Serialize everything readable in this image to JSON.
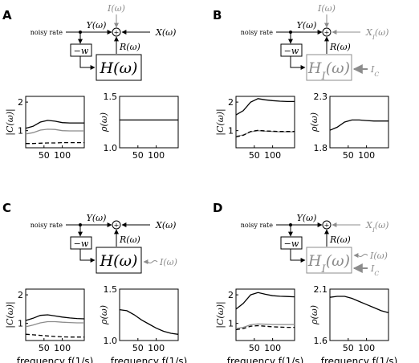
{
  "colors": {
    "black": "#000000",
    "gray": "#8c8c8c"
  },
  "panels": [
    {
      "letter": "A",
      "noisy": "noisy rate",
      "Y": "Y(ω)",
      "I": "I(ω)",
      "R": "R(ω)",
      "X": "X(ω)",
      "w": "−w",
      "H": "H(ω)",
      "side_input": "",
      "I_gray": true,
      "X_gray": false,
      "H_gray": false,
      "C_ylabel": "|C(ω)|",
      "rho_ylabel": "ρ(ω)",
      "C_yticks": [
        "1",
        "2"
      ],
      "C_xticks": [
        "50",
        "100"
      ],
      "rho_yticks": [
        "1.0",
        "1.5"
      ],
      "rho_xticks": [
        "50",
        "100"
      ],
      "xlabel": ""
    },
    {
      "letter": "B",
      "noisy": "noisy rate",
      "Y": "Y(ω)",
      "I": "I(ω)",
      "R": "R(ω)",
      "X": "X_I(ω)",
      "w": "−w",
      "H": "H_I(ω)",
      "side_input": "I_C",
      "I_gray": true,
      "X_gray": true,
      "H_gray": true,
      "C_ylabel": "|C(ω)|",
      "rho_ylabel": "ρ(ω)",
      "C_yticks": [
        "1",
        "2"
      ],
      "C_xticks": [
        "50",
        "100"
      ],
      "rho_yticks": [
        "1.8",
        "2.3"
      ],
      "rho_xticks": [
        "50",
        "100"
      ],
      "xlabel": ""
    },
    {
      "letter": "C",
      "noisy": "noisy rate",
      "Y": "Y(ω)",
      "I": "",
      "R": "R(ω)",
      "X": "X(ω)",
      "w": "−w",
      "H": "H(ω)",
      "side_input": "I(ω)",
      "I_gray": true,
      "X_gray": false,
      "H_gray": false,
      "C_ylabel": "|C(ω)|",
      "rho_ylabel": "ρ(ω)",
      "C_yticks": [
        "1",
        "2"
      ],
      "C_xticks": [
        "50",
        "100"
      ],
      "rho_yticks": [
        "1.0",
        "1.5"
      ],
      "rho_xticks": [
        "50",
        "100"
      ],
      "xlabel": "frequency f(1/s)"
    },
    {
      "letter": "D",
      "noisy": "noisy rate",
      "Y": "Y(ω)",
      "I": "",
      "R": "R(ω)",
      "X": "X_I(ω)",
      "w": "−w",
      "H": "H_I(ω)",
      "side_input": "I(ω)",
      "side_input2": "I_C",
      "I_gray": true,
      "X_gray": true,
      "H_gray": true,
      "C_ylabel": "|C(ω)|",
      "rho_ylabel": "ρ(ω)",
      "C_yticks": [
        "1",
        "2"
      ],
      "C_xticks": [
        "50",
        "100"
      ],
      "rho_yticks": [
        "1.6",
        "2.1"
      ],
      "rho_xticks": [
        "50",
        "100"
      ],
      "xlabel": "frequency f(1/s)"
    }
  ],
  "chart_data": [
    {
      "panel": "A",
      "type": "line",
      "ylabel": "|C(ω)|",
      "xlim": [
        0,
        160
      ],
      "ylim": [
        0.4,
        2.2
      ],
      "series": [
        {
          "style": "black-solid",
          "x": [
            0,
            20,
            40,
            60,
            80,
            100,
            120,
            140,
            160
          ],
          "values": [
            1.08,
            1.15,
            1.3,
            1.36,
            1.33,
            1.28,
            1.27,
            1.27,
            1.27
          ]
        },
        {
          "style": "gray-solid",
          "x": [
            0,
            20,
            40,
            60,
            80,
            100,
            120,
            140,
            160
          ],
          "values": [
            0.88,
            0.93,
            1.02,
            1.05,
            1.04,
            1.0,
            0.99,
            0.99,
            0.99
          ]
        },
        {
          "style": "black-dashed",
          "x": [
            0,
            20,
            40,
            60,
            80,
            100,
            120,
            140,
            160
          ],
          "values": [
            0.55,
            0.55,
            0.56,
            0.57,
            0.57,
            0.58,
            0.58,
            0.58,
            0.58
          ]
        }
      ]
    },
    {
      "panel": "A",
      "type": "line",
      "ylabel": "ρ(ω)",
      "xlim": [
        0,
        160
      ],
      "ylim": [
        1.0,
        1.5
      ],
      "series": [
        {
          "style": "black-solid",
          "x": [
            0,
            160
          ],
          "values": [
            1.27,
            1.27
          ]
        }
      ]
    },
    {
      "panel": "B",
      "type": "line",
      "ylabel": "|C(ω)|",
      "xlim": [
        0,
        160
      ],
      "ylim": [
        0.4,
        2.2
      ],
      "series": [
        {
          "style": "black-solid",
          "x": [
            0,
            20,
            40,
            60,
            80,
            100,
            120,
            140,
            160
          ],
          "values": [
            1.55,
            1.7,
            2.0,
            2.12,
            2.08,
            2.05,
            2.03,
            2.02,
            2.02
          ]
        },
        {
          "style": "gray-solid",
          "x": [
            0,
            20,
            40,
            60,
            80,
            100,
            120,
            140,
            160
          ],
          "values": [
            0.8,
            0.85,
            0.96,
            1.0,
            0.98,
            0.97,
            0.96,
            0.96,
            0.96
          ]
        },
        {
          "style": "black-dashed",
          "x": [
            0,
            20,
            40,
            60,
            80,
            100,
            120,
            140,
            160
          ],
          "values": [
            0.78,
            0.84,
            0.97,
            1.01,
            0.99,
            0.98,
            0.97,
            0.97,
            0.97
          ]
        }
      ]
    },
    {
      "panel": "B",
      "type": "line",
      "ylabel": "ρ(ω)",
      "xlim": [
        0,
        160
      ],
      "ylim": [
        1.8,
        2.3
      ],
      "series": [
        {
          "style": "black-solid",
          "x": [
            0,
            20,
            40,
            60,
            80,
            100,
            120,
            140,
            160
          ],
          "values": [
            1.97,
            2.0,
            2.05,
            2.07,
            2.07,
            2.065,
            2.06,
            2.06,
            2.06
          ]
        }
      ]
    },
    {
      "panel": "C",
      "type": "line",
      "ylabel": "|C(ω)|",
      "xlim": [
        0,
        160
      ],
      "ylim": [
        0.4,
        2.2
      ],
      "series": [
        {
          "style": "black-solid",
          "x": [
            0,
            20,
            40,
            60,
            80,
            100,
            120,
            140,
            160
          ],
          "values": [
            1.1,
            1.18,
            1.28,
            1.3,
            1.26,
            1.22,
            1.19,
            1.17,
            1.16
          ]
        },
        {
          "style": "gray-solid",
          "x": [
            0,
            20,
            40,
            60,
            80,
            100,
            120,
            140,
            160
          ],
          "values": [
            0.88,
            0.94,
            1.02,
            1.06,
            1.06,
            1.04,
            1.03,
            1.02,
            1.02
          ]
        },
        {
          "style": "black-dashed",
          "x": [
            0,
            20,
            40,
            60,
            80,
            100,
            120,
            140,
            160
          ],
          "values": [
            0.62,
            0.6,
            0.58,
            0.56,
            0.54,
            0.53,
            0.52,
            0.52,
            0.52
          ]
        }
      ]
    },
    {
      "panel": "C",
      "type": "line",
      "ylabel": "ρ(ω)",
      "xlim": [
        0,
        160
      ],
      "ylim": [
        1.0,
        1.5
      ],
      "series": [
        {
          "style": "black-solid",
          "x": [
            0,
            20,
            40,
            60,
            80,
            100,
            120,
            140,
            160
          ],
          "values": [
            1.3,
            1.29,
            1.25,
            1.2,
            1.16,
            1.12,
            1.09,
            1.07,
            1.06
          ]
        }
      ]
    },
    {
      "panel": "D",
      "type": "line",
      "ylabel": "|C(ω)|",
      "xlim": [
        0,
        160
      ],
      "ylim": [
        0.4,
        2.2
      ],
      "series": [
        {
          "style": "black-solid",
          "x": [
            0,
            20,
            40,
            60,
            80,
            100,
            120,
            140,
            160
          ],
          "values": [
            1.5,
            1.7,
            2.0,
            2.08,
            2.02,
            1.97,
            1.95,
            1.94,
            1.93
          ]
        },
        {
          "style": "gray-solid",
          "x": [
            0,
            20,
            40,
            60,
            80,
            100,
            120,
            140,
            160
          ],
          "values": [
            0.82,
            0.86,
            0.95,
            0.98,
            0.97,
            0.96,
            0.96,
            0.96,
            0.96
          ]
        },
        {
          "style": "black-dashed",
          "x": [
            0,
            20,
            40,
            60,
            80,
            100,
            120,
            140,
            160
          ],
          "values": [
            0.78,
            0.82,
            0.9,
            0.92,
            0.9,
            0.88,
            0.87,
            0.86,
            0.86
          ]
        }
      ]
    },
    {
      "panel": "D",
      "type": "line",
      "ylabel": "ρ(ω)",
      "xlim": [
        0,
        160
      ],
      "ylim": [
        1.6,
        2.1
      ],
      "series": [
        {
          "style": "black-solid",
          "x": [
            0,
            20,
            40,
            60,
            80,
            100,
            120,
            140,
            160
          ],
          "values": [
            2.02,
            2.03,
            2.03,
            2.01,
            1.98,
            1.95,
            1.92,
            1.89,
            1.87
          ]
        }
      ]
    }
  ]
}
